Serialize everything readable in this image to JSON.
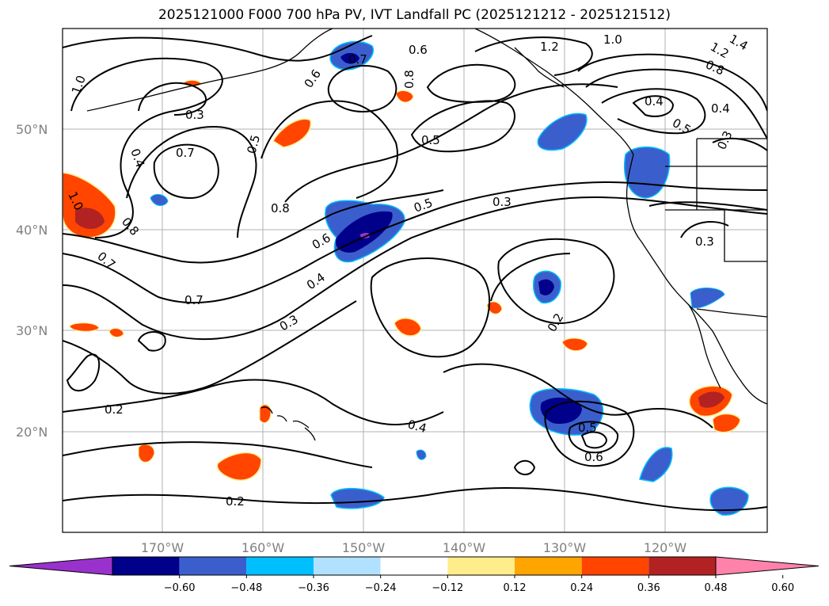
{
  "title": "2025121000 F000 700 hPa PV, IVT Landfall PC (2025121212 - 2025121512)",
  "lat_ticks": [
    "50°N",
    "40°N",
    "30°N",
    "20°N"
  ],
  "lon_ticks": [
    "170°W",
    "160°W",
    "150°W",
    "140°W",
    "130°W",
    "120°W"
  ],
  "contour_labels": [
    "1.0",
    "0.3",
    "0.7",
    "0.4",
    "0.5",
    "0.6",
    "0.7",
    "0.8",
    "0.6",
    "1.2",
    "1.0",
    "1.2",
    "1.4",
    "0.8",
    "0.4",
    "0.5",
    "0.4",
    "0.3",
    "0.5",
    "0.8",
    "0.5",
    "0.3",
    "0.6",
    "0.4",
    "0.3",
    "0.7",
    "1.0",
    "0.8",
    "0.7",
    "0.2",
    "0.2",
    "0.3",
    "0.4",
    "0.5",
    "0.6",
    "0.2"
  ],
  "colorbar": {
    "ticks": [
      "−0.60",
      "−0.48",
      "−0.36",
      "−0.24",
      "−0.12",
      "0.12",
      "0.24",
      "0.36",
      "0.48",
      "0.60"
    ],
    "colors": [
      "#9932cc",
      "#00008b",
      "#3a5fcd",
      "#00bfff",
      "#b0e2ff",
      "#ffffff",
      "#ffec8b",
      "#ffa500",
      "#ff4500",
      "#b22222",
      "#ff82ab"
    ]
  },
  "colors": {
    "land": "#000000",
    "grid": "#b0b0b0",
    "tick_label": "#808080"
  }
}
